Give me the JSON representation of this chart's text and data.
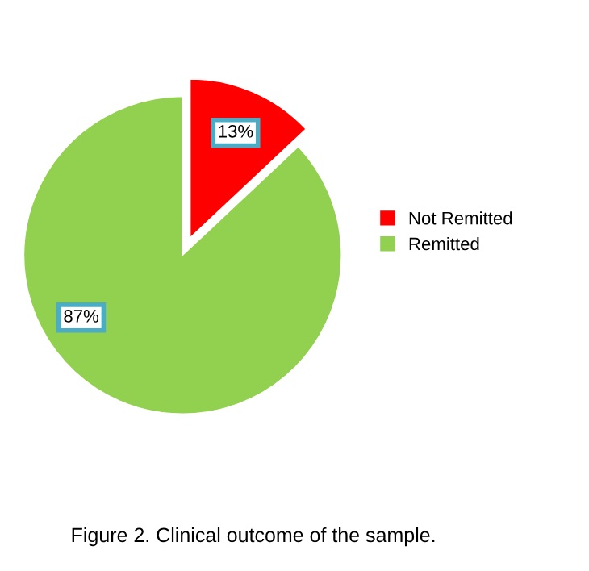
{
  "chart_data": {
    "type": "pie",
    "categories": [
      "Not Remitted",
      "Remitted"
    ],
    "values": [
      13,
      87
    ],
    "colors": [
      "#ff0000",
      "#92d050"
    ],
    "value_labels": [
      "13%",
      "87%"
    ],
    "legend": "right",
    "annotations": [
      "Figure 2. Clinical outcome of the sample."
    ]
  }
}
